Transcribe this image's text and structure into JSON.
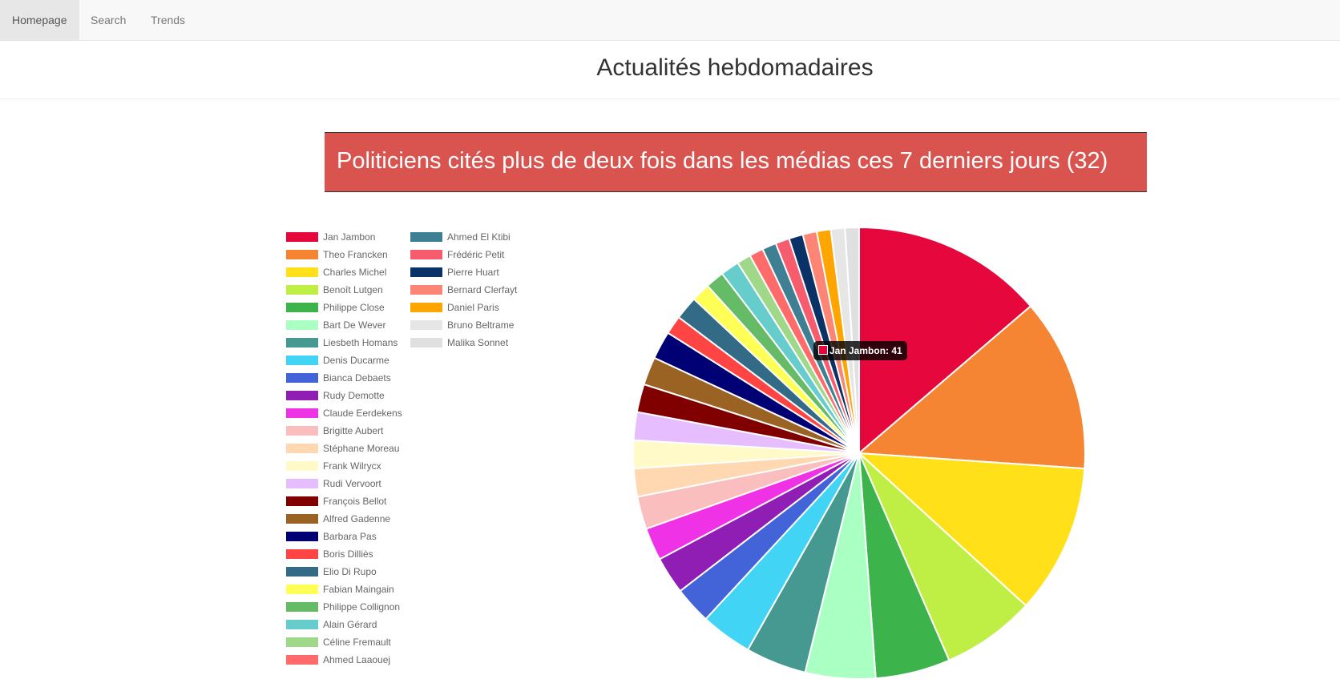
{
  "nav": {
    "items": [
      {
        "label": "Homepage",
        "active": true
      },
      {
        "label": "Search",
        "active": false
      },
      {
        "label": "Trends",
        "active": false
      }
    ]
  },
  "header": {
    "title": "Actualités hebdomadaires"
  },
  "banner": {
    "text": "Politiciens cités plus de deux fois dans les médias ces 7 derniers jours (32)"
  },
  "tooltip": {
    "text": "Jan Jambon: 41",
    "color": "#e6073c"
  },
  "chart_data": {
    "type": "pie",
    "title": "",
    "legend_placement": "left",
    "slices": [
      {
        "label": "Jan Jambon",
        "value": 41,
        "color": "#e6073c"
      },
      {
        "label": "Theo Francken",
        "value": 37,
        "color": "#f58533"
      },
      {
        "label": "Charles Michel",
        "value": 32,
        "color": "#ffe019"
      },
      {
        "label": "Benoît Lutgen",
        "value": 20,
        "color": "#bfef45"
      },
      {
        "label": "Philippe Close",
        "value": 16,
        "color": "#3cb44b"
      },
      {
        "label": "Bart De Wever",
        "value": 15,
        "color": "#aaffc3"
      },
      {
        "label": "Liesbeth Homans",
        "value": 13,
        "color": "#469990"
      },
      {
        "label": "Denis Ducarme",
        "value": 11,
        "color": "#42d4f4"
      },
      {
        "label": "Bianca Debaets",
        "value": 8,
        "color": "#4363d8"
      },
      {
        "label": "Rudy Demotte",
        "value": 8,
        "color": "#911eb4"
      },
      {
        "label": "Claude Eerdekens",
        "value": 7,
        "color": "#f032e6"
      },
      {
        "label": "Brigitte Aubert",
        "value": 7,
        "color": "#fabebe"
      },
      {
        "label": "Stéphane Moreau",
        "value": 6,
        "color": "#ffd8b1"
      },
      {
        "label": "Frank Wilrycx",
        "value": 6,
        "color": "#fffac8"
      },
      {
        "label": "Rudi Vervoort",
        "value": 6,
        "color": "#e6beff"
      },
      {
        "label": "François Bellot",
        "value": 6,
        "color": "#800000"
      },
      {
        "label": "Alfred Gadenne",
        "value": 6,
        "color": "#9a6324"
      },
      {
        "label": "Barbara Pas",
        "value": 6,
        "color": "#000075"
      },
      {
        "label": "Boris Dilliès",
        "value": 4,
        "color": "#ff4444"
      },
      {
        "label": "Elio Di Rupo",
        "value": 5,
        "color": "#336b87"
      },
      {
        "label": "Fabian Maingain",
        "value": 4,
        "color": "#ffff55"
      },
      {
        "label": "Philippe Collignon",
        "value": 4,
        "color": "#66bb66"
      },
      {
        "label": "Alain Gérard",
        "value": 4,
        "color": "#66cccc"
      },
      {
        "label": "Céline Fremault",
        "value": 3,
        "color": "#a0d88a"
      },
      {
        "label": "Ahmed Laaouej",
        "value": 3,
        "color": "#ff6b6b"
      },
      {
        "label": "Ahmed El Ktibi",
        "value": 3,
        "color": "#3f7f93"
      },
      {
        "label": "Frédéric Petit",
        "value": 3,
        "color": "#f75b6e"
      },
      {
        "label": "Pierre Huart",
        "value": 3,
        "color": "#0a3266"
      },
      {
        "label": "Bernard Clerfayt",
        "value": 3,
        "color": "#fd8575"
      },
      {
        "label": "Daniel Paris",
        "value": 3,
        "color": "#ffa500"
      },
      {
        "label": "Bruno Beltrame",
        "value": 3,
        "color": "#e6e6e6"
      },
      {
        "label": "Malika Sonnet",
        "value": 3,
        "color": "#e0e0e0"
      }
    ]
  }
}
